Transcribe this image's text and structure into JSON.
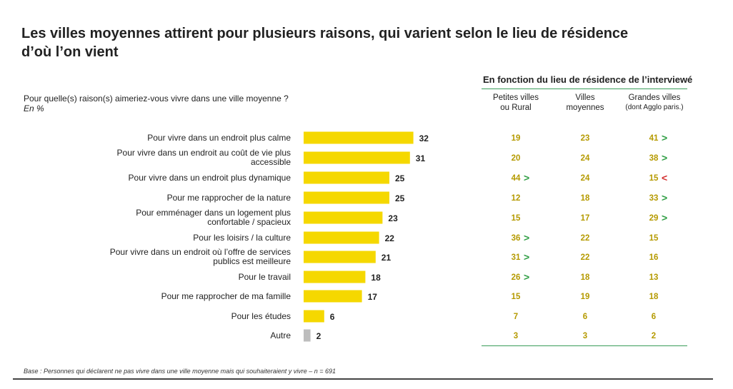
{
  "title_line1": "Les villes moyennes attirent pour plusieurs raisons, qui varient selon le lieu de résidence",
  "title_line2": "d’où l’on vient",
  "question": "Pour quelle(s) raison(s) aimeriez-vous vivre dans une ville moyenne ?",
  "unit": "En %",
  "cross_header": "En fonction du lieu de résidence de l’interviewé",
  "columns": [
    {
      "line1": "Petites villes",
      "line2": "ou Rural"
    },
    {
      "line1": "Villes",
      "line2": "moyennes"
    },
    {
      "line1": "Grandes villes",
      "line2": "(dont Agglo paris.)"
    }
  ],
  "footer": "Base : Personnes qui déclarent ne pas vivre dans une ville moyenne mais qui souhaiteraient y vivre – n = 691",
  "colors": {
    "bar": "#f5d800",
    "bar_other": "#bdbdbd",
    "value": "#b59a00",
    "up": "#2f9e44",
    "down": "#d32f2f",
    "line": "#3a9d5a"
  },
  "chart_data": {
    "type": "bar",
    "orientation": "horizontal",
    "categories": [
      [
        "Pour vivre dans un endroit plus calme"
      ],
      [
        "Pour vivre dans un endroit au coût de vie plus",
        "accessible"
      ],
      [
        "Pour vivre dans un endroit plus dynamique"
      ],
      [
        "Pour me rapprocher de la nature"
      ],
      [
        "Pour emménager dans un logement plus",
        "confortable / spacieux"
      ],
      [
        "Pour les loisirs / la culture"
      ],
      [
        "Pour vivre dans un endroit où l’offre de services",
        "publics est meilleure"
      ],
      [
        "Pour le travail"
      ],
      [
        "Pour me rapprocher de ma famille"
      ],
      [
        "Pour les études"
      ],
      [
        "Autre"
      ]
    ],
    "values": [
      32,
      31,
      25,
      25,
      23,
      22,
      21,
      18,
      17,
      6,
      2
    ],
    "breakdown": [
      [
        19,
        23,
        41
      ],
      [
        20,
        24,
        38
      ],
      [
        44,
        24,
        15
      ],
      [
        12,
        18,
        33
      ],
      [
        15,
        17,
        29
      ],
      [
        36,
        22,
        15
      ],
      [
        31,
        22,
        16
      ],
      [
        26,
        18,
        13
      ],
      [
        15,
        19,
        18
      ],
      [
        7,
        6,
        6
      ],
      [
        3,
        3,
        2
      ]
    ],
    "significance": [
      [
        null,
        null,
        "up"
      ],
      [
        null,
        null,
        "up"
      ],
      [
        "up",
        null,
        "down"
      ],
      [
        null,
        null,
        "up"
      ],
      [
        null,
        null,
        "up"
      ],
      [
        "up",
        null,
        null
      ],
      [
        "up",
        null,
        null
      ],
      [
        "up",
        null,
        null
      ],
      [
        null,
        null,
        null
      ],
      [
        null,
        null,
        null
      ],
      [
        null,
        null,
        null
      ]
    ],
    "symbols": {
      "up": ">",
      "down": "<"
    }
  }
}
